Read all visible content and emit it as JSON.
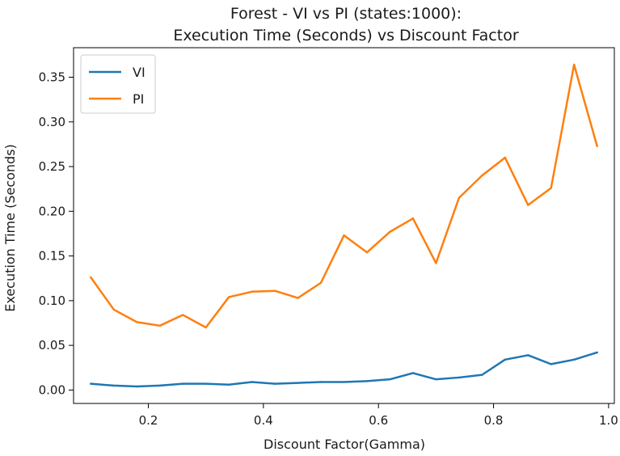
{
  "chart_data": {
    "type": "line",
    "title_line1": "Forest - VI vs PI (states:1000):",
    "title_line2": "Execution Time (Seconds) vs Discount Factor",
    "xlabel": "Discount Factor(Gamma)",
    "ylabel": "Execution Time (Seconds)",
    "xlim": [
      0.07,
      1.01
    ],
    "ylim": [
      -0.015,
      0.383
    ],
    "xticks": [
      0.2,
      0.4,
      0.6,
      0.8,
      1.0
    ],
    "xtick_labels": [
      "0.2",
      "0.4",
      "0.6",
      "0.8",
      "1.0"
    ],
    "yticks": [
      0.0,
      0.05,
      0.1,
      0.15,
      0.2,
      0.25,
      0.3,
      0.35
    ],
    "ytick_labels": [
      "0.00",
      "0.05",
      "0.10",
      "0.15",
      "0.20",
      "0.25",
      "0.30",
      "0.35"
    ],
    "legend_position": "top-left",
    "grid": false,
    "x": [
      0.1,
      0.14,
      0.18,
      0.22,
      0.26,
      0.3,
      0.34,
      0.38,
      0.42,
      0.46,
      0.5,
      0.54,
      0.58,
      0.62,
      0.66,
      0.7,
      0.74,
      0.78,
      0.82,
      0.86,
      0.9,
      0.94,
      0.98
    ],
    "series": [
      {
        "name": "VI",
        "color": "#1f77b4",
        "values": [
          0.007,
          0.005,
          0.004,
          0.005,
          0.007,
          0.007,
          0.006,
          0.009,
          0.007,
          0.008,
          0.009,
          0.009,
          0.01,
          0.012,
          0.019,
          0.012,
          0.014,
          0.017,
          0.034,
          0.039,
          0.029,
          0.034,
          0.042
        ]
      },
      {
        "name": "PI",
        "color": "#ff7f0e",
        "values": [
          0.126,
          0.09,
          0.076,
          0.072,
          0.084,
          0.07,
          0.104,
          0.11,
          0.111,
          0.103,
          0.12,
          0.173,
          0.154,
          0.177,
          0.192,
          0.142,
          0.215,
          0.24,
          0.26,
          0.207,
          0.226,
          0.364,
          0.273
        ]
      }
    ]
  }
}
